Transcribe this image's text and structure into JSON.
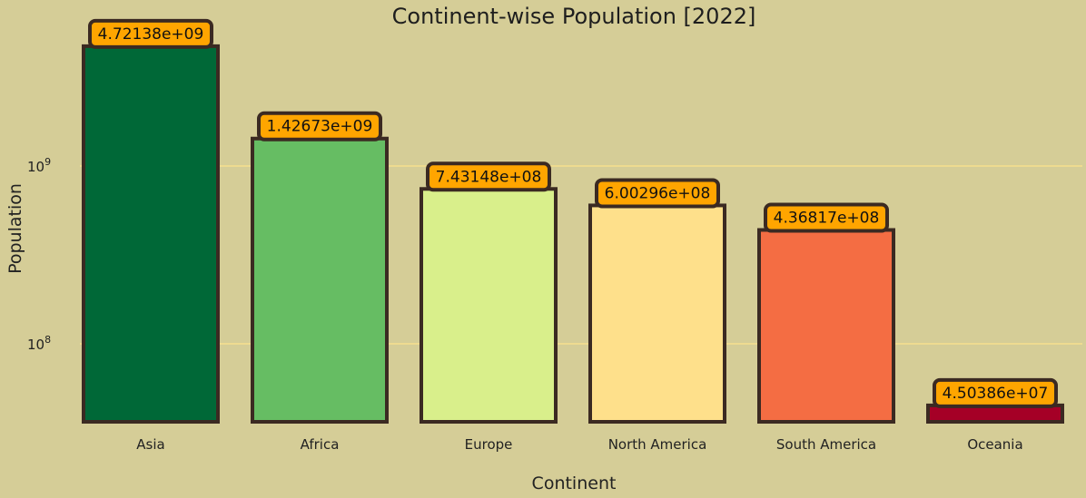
{
  "chart_data": {
    "type": "bar",
    "title": "Continent-wise Population [2022]",
    "xlabel": "Continent",
    "ylabel": "Population",
    "y_scale": "log",
    "categories": [
      "Asia",
      "Africa",
      "Europe",
      "North America",
      "South America",
      "Oceania"
    ],
    "values": [
      4721380000,
      1426730000,
      743148000,
      600296000,
      436817000,
      45038600
    ],
    "data_labels": [
      "4.72138e+09",
      "1.42673e+09",
      "7.43148e+08",
      "6.00296e+08",
      "4.36817e+08",
      "4.50386e+07"
    ],
    "yticks": [
      {
        "value": 1000000000,
        "base": "10",
        "exp": "9"
      },
      {
        "value": 100000000,
        "base": "10",
        "exp": "8"
      }
    ],
    "grid": "horizontal",
    "bar_colors": [
      "#006837",
      "#66bd63",
      "#d9ef8b",
      "#fee08b",
      "#f46d43",
      "#a50026"
    ],
    "label_box_color": "#ffa500",
    "edge_color": "#3b2a22",
    "grid_color": "#f7e08e",
    "background": "#d5cd97"
  }
}
